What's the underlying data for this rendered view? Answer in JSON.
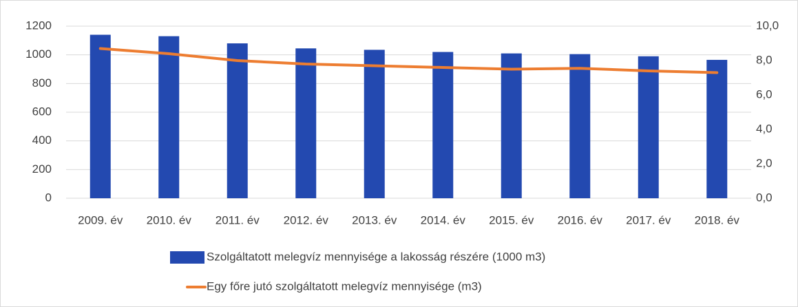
{
  "chart_data": {
    "type": "bar",
    "categories": [
      "2009. év",
      "2010. év",
      "2011. év",
      "2012. év",
      "2013. év",
      "2014. év",
      "2015. év",
      "2016. év",
      "2017. év",
      "2018. év"
    ],
    "series": [
      {
        "name": "Szolgáltatott melegvíz mennyisége a lakosság részére (1000 m3)",
        "type": "bar",
        "color": "#2349b0",
        "values": [
          1140,
          1130,
          1080,
          1045,
          1035,
          1020,
          1010,
          1005,
          990,
          965
        ]
      },
      {
        "name": "Egy főre jutó szolgáltatott melegvíz mennyisége (m3)",
        "type": "line",
        "axis": "y2",
        "color": "#ed7d31",
        "values": [
          8.7,
          8.4,
          8.0,
          7.8,
          7.7,
          7.6,
          7.5,
          7.55,
          7.4,
          7.3
        ]
      }
    ],
    "ylim": [
      0,
      1200
    ],
    "yticks": [
      0,
      200,
      400,
      600,
      800,
      1000,
      1200
    ],
    "y2lim": [
      0,
      10
    ],
    "y2ticks": [
      {
        "value": 0,
        "label": "0,0"
      },
      {
        "value": 2,
        "label": "2,0"
      },
      {
        "value": 4,
        "label": "4,0"
      },
      {
        "value": 6,
        "label": "6,0"
      },
      {
        "value": 8,
        "label": "8,0"
      },
      {
        "value": 10,
        "label": "10,0"
      }
    ],
    "grid": true,
    "legend": "bottom"
  }
}
